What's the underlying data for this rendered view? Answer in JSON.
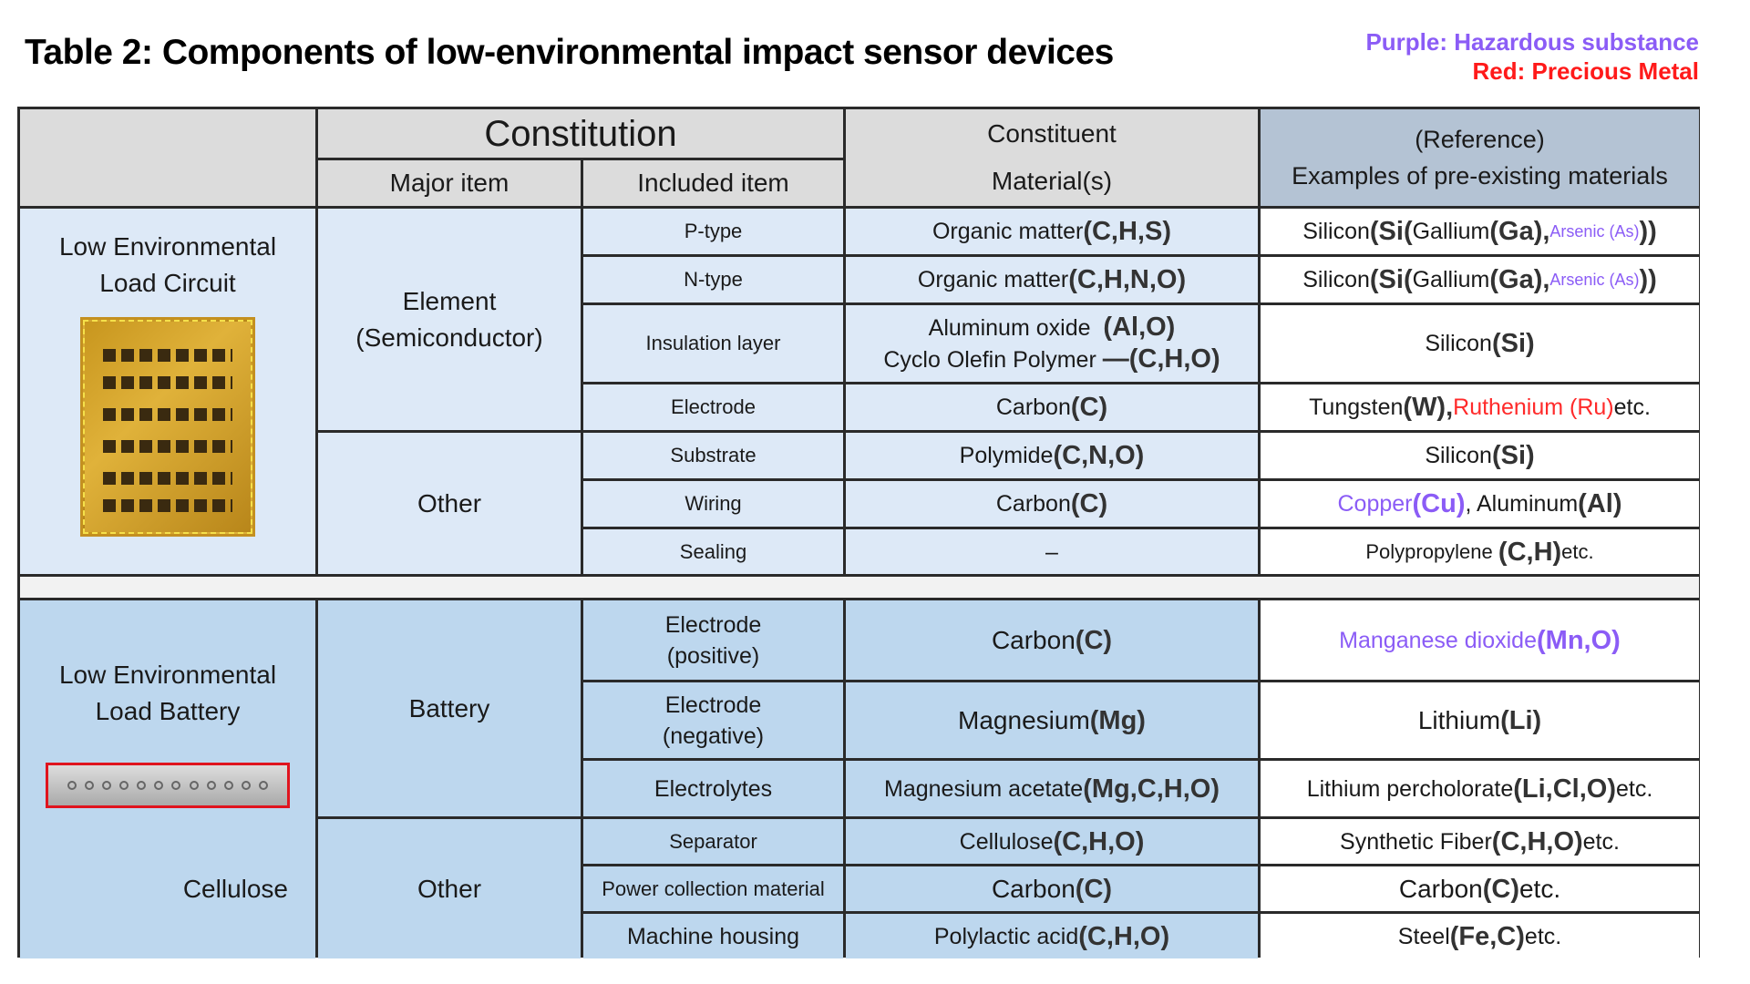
{
  "title": "Table 2: Components of  low-environmental impact sensor devices",
  "legend": {
    "purple": "Purple: Hazardous substance",
    "red": "Red: Precious Metal"
  },
  "colors": {
    "purple": "#8b5cf6",
    "red": "#ff1a1a",
    "header": "#dcdcdc",
    "circuit": "#dde9f7",
    "battery": "#bdd7ee",
    "reference": "#b4c3d4"
  },
  "header": {
    "constitution": "Constitution",
    "major": "Major item",
    "included": "Included item",
    "constituent": "Constituent Material(s)",
    "ref1": "(Reference)",
    "ref2": "Examples of pre-existing materials"
  },
  "circuit": {
    "label": "Low Environmental Load Circuit",
    "major1": "Element (Semiconductor)",
    "major2": "Other",
    "rows": [
      {
        "item": "P-type",
        "mat": "Organic matter ",
        "f": "(C,H,S)",
        "ref": [
          "Silicon",
          "(Si(",
          "Gallium",
          "(Ga),",
          "Arsenic (As)",
          "))"
        ]
      },
      {
        "item": "N-type",
        "mat": "Organic matter",
        "f": "(C,H,N,O)",
        "ref": [
          "Silicon",
          "(Si(",
          "Gallium",
          "(Ga),",
          "Arsenic (As)",
          "))"
        ]
      },
      {
        "item": "Insulation layer",
        "mat": "Aluminum oxide",
        "f": "(Al,O)",
        "mat2": "Cyclo Olefin Polymer",
        "f2": "—(C,H,O)",
        "ref": [
          "Silicon ",
          "(Si)"
        ]
      },
      {
        "item": "Electrode",
        "mat": "Carbon",
        "f": "(C)",
        "ref": [
          "Tungsten",
          "(W), ",
          "Ruthenium (Ru)",
          "etc."
        ]
      },
      {
        "item": "Substrate",
        "mat": "Polymide ",
        "f": "(C,N,O)",
        "ref": [
          "Silicon ",
          "(Si)"
        ]
      },
      {
        "item": "Wiring",
        "mat": "Carbon",
        "f": "(C)",
        "ref": [
          "Copper ",
          "(Cu)",
          ", Aluminum",
          "(Al)"
        ]
      },
      {
        "item": "Sealing",
        "mat": "–",
        "ref": [
          "Polypropylene ",
          "(C,H)",
          " etc."
        ]
      }
    ]
  },
  "battery": {
    "label": "Low Environmental Load Battery",
    "caption": "Cellulose",
    "major1": "Battery",
    "major2": "Other",
    "rows": [
      {
        "item": "Electrode (positive)",
        "mat": "Carbon ",
        "f": "(C)",
        "ref": [
          "Manganese dioxide ",
          "(Mn,O)"
        ]
      },
      {
        "item": "Electrode (negative)",
        "mat": "Magnesium ",
        "f": "(Mg)",
        "ref": [
          "Lithium",
          "(Li)"
        ]
      },
      {
        "item": "Electrolytes",
        "mat": "Magnesium acetate ",
        "f": "(Mg,C,H,O)",
        "ref": [
          "Lithium percholorate",
          "(Li,Cl,O)",
          " etc."
        ]
      },
      {
        "item": "Separator",
        "mat": "Cellulose ",
        "f": "(C,H,O)",
        "ref": [
          "Synthetic Fiber ",
          "(C,H,O)",
          "etc."
        ]
      },
      {
        "item": "Power collection material",
        "mat": "Carbon",
        "f": "(C)",
        "ref": [
          "Carbon",
          "(C)",
          " etc."
        ]
      },
      {
        "item": "Machine housing",
        "mat": "Polylactic acid ",
        "f": "(C,H,O)",
        "ref": [
          "Steel",
          "(Fe,C)",
          " etc."
        ]
      }
    ]
  }
}
